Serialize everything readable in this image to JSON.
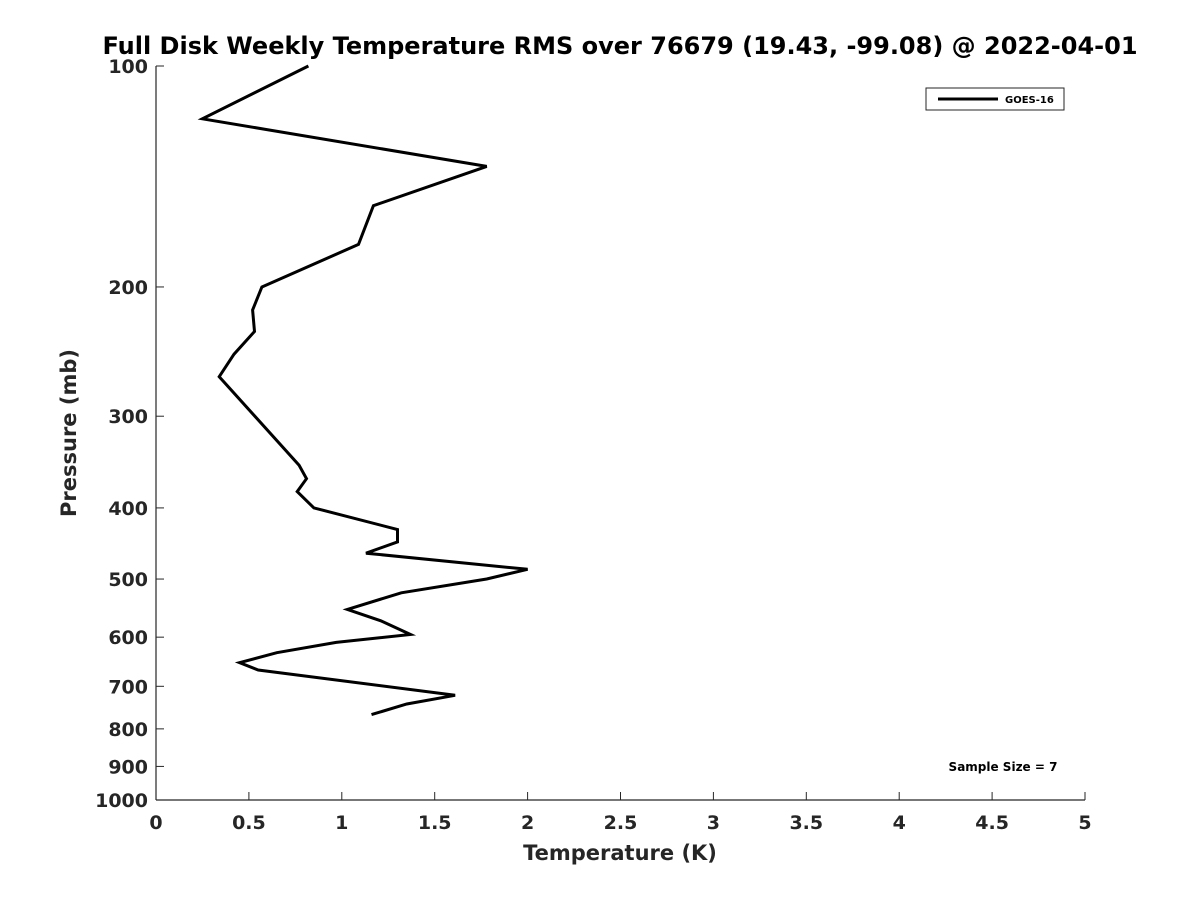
{
  "chart_data": {
    "type": "line",
    "title": "Full Disk Weekly Temperature RMS over 76679 (19.43, -99.08) @ 2022-04-01",
    "xlabel": "Temperature (K)",
    "ylabel": "Pressure (mb)",
    "xlim": [
      0,
      5
    ],
    "ylim": [
      1000,
      100
    ],
    "y_scale": "log",
    "x_ticks": [
      0,
      0.5,
      1,
      1.5,
      2,
      2.5,
      3,
      3.5,
      4,
      4.5,
      5
    ],
    "x_tick_labels": [
      "0",
      "0.5",
      "1",
      "1.5",
      "2",
      "2.5",
      "3",
      "3.5",
      "4",
      "4.5",
      "5"
    ],
    "y_ticks": [
      100,
      200,
      300,
      400,
      500,
      600,
      700,
      800,
      900,
      1000
    ],
    "y_tick_labels": [
      "100",
      "200",
      "300",
      "400",
      "500",
      "600",
      "700",
      "800",
      "900",
      "1000"
    ],
    "grid": false,
    "legend_position": "top-right",
    "annotation": "Sample Size = 7",
    "line_color": "#000000",
    "series": [
      {
        "name": "GOES-16",
        "x": [
          0.82,
          0.25,
          1.78,
          1.17,
          1.09,
          0.57,
          0.52,
          0.53,
          0.42,
          0.34,
          0.77,
          0.81,
          0.76,
          0.85,
          1.3,
          1.3,
          1.13,
          2.0,
          1.78,
          1.32,
          1.03,
          1.21,
          1.37,
          0.97,
          0.65,
          0.45,
          0.55,
          1.61,
          1.35,
          1.16
        ],
        "y": [
          100,
          118,
          137,
          155,
          175,
          200,
          215,
          230,
          247,
          265,
          350,
          365,
          380,
          400,
          428,
          445,
          461,
          485,
          500,
          522,
          550,
          570,
          595,
          610,
          630,
          650,
          665,
          720,
          740,
          765
        ]
      }
    ]
  }
}
